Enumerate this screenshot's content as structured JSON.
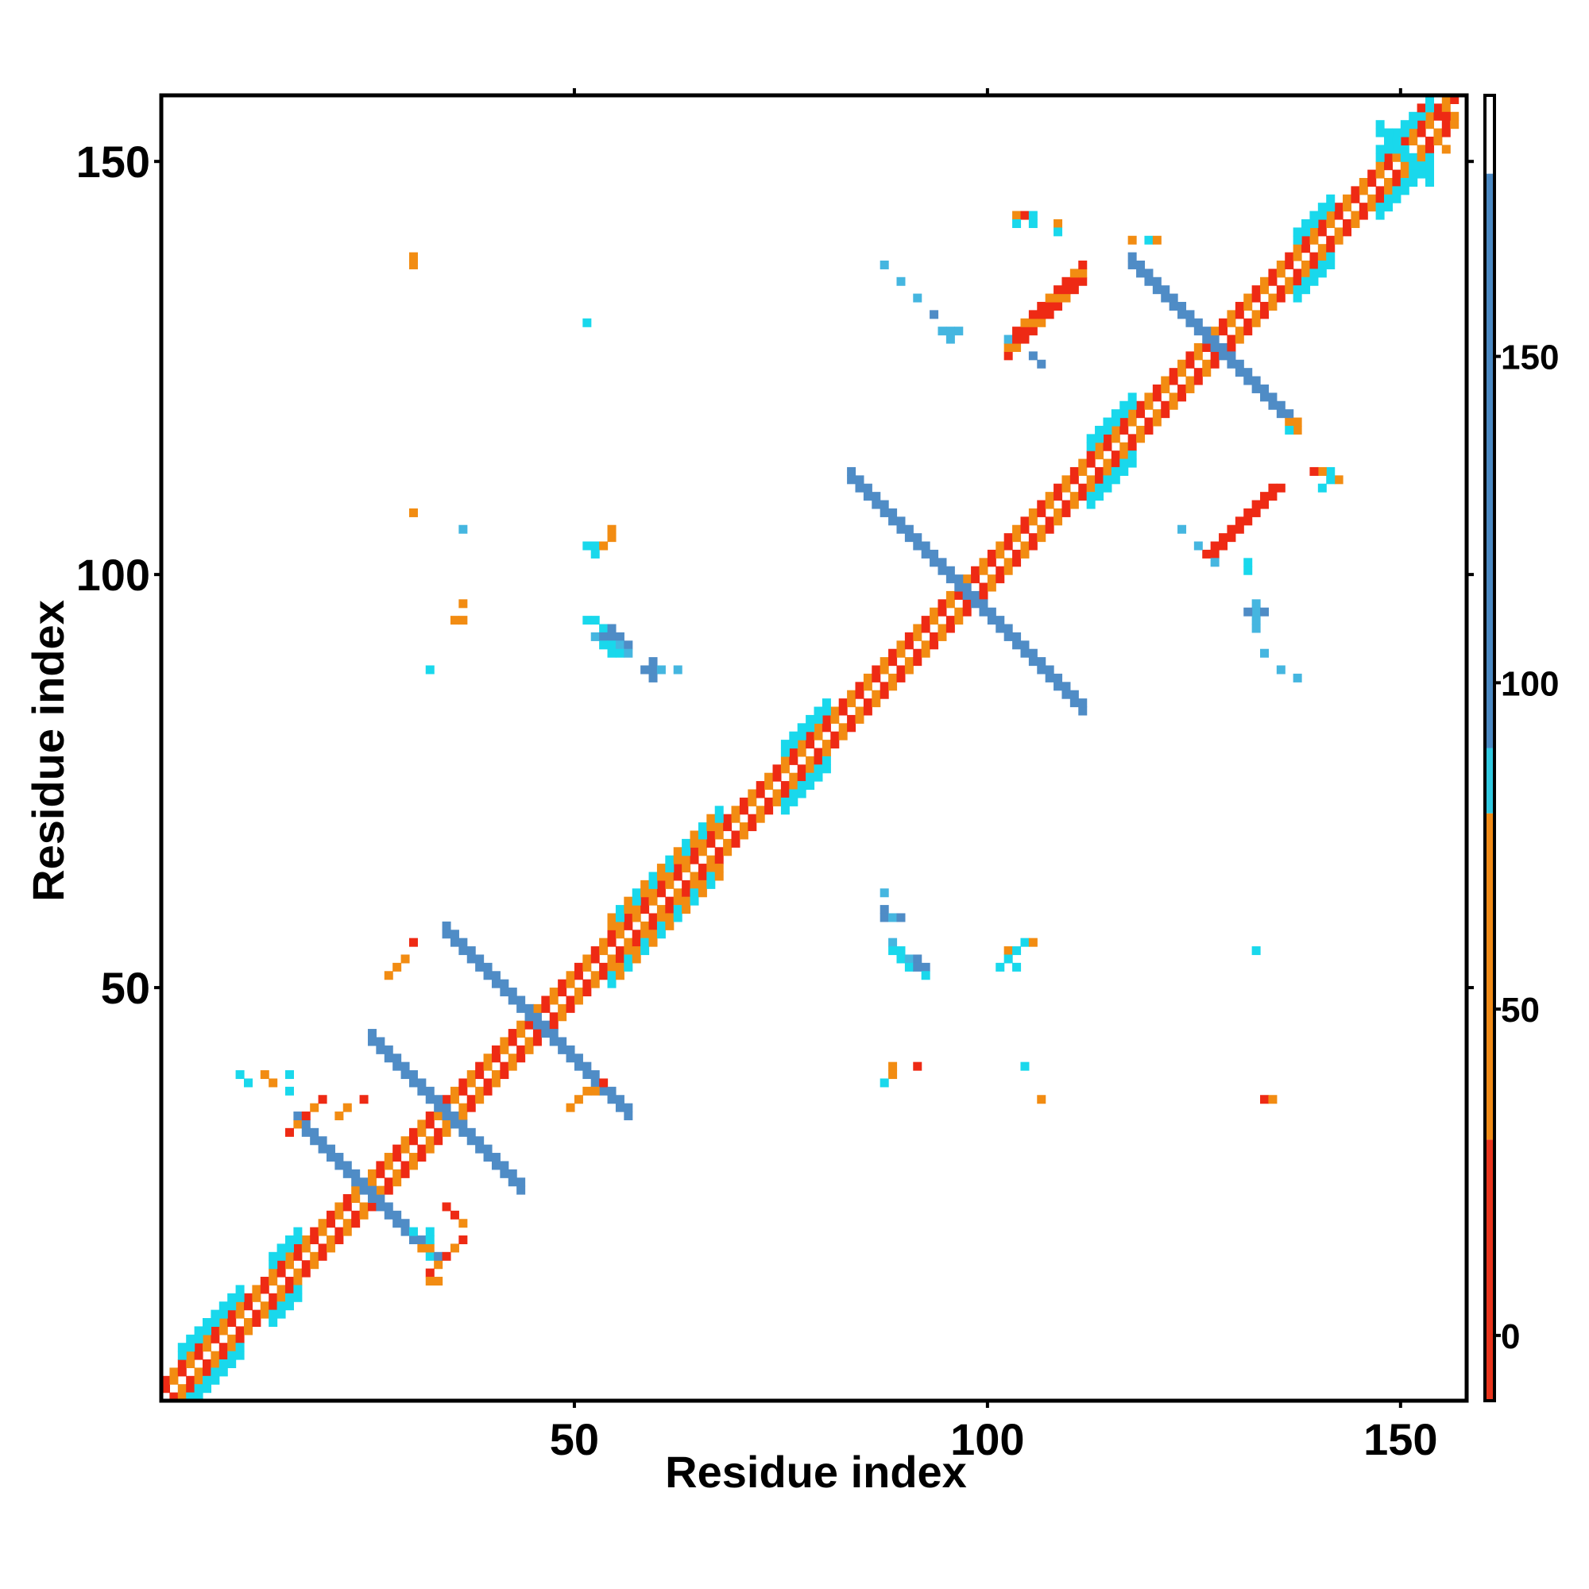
{
  "chart_data": {
    "type": "heatmap",
    "title": "",
    "xlabel": "Residue index",
    "ylabel": "Residue index",
    "xlim": [
      0,
      158
    ],
    "ylim": [
      0,
      158
    ],
    "x_ticks": [
      50,
      100,
      150
    ],
    "y_ticks": [
      50,
      100,
      150
    ],
    "x_tick_labels": [
      "50",
      "100",
      "150"
    ],
    "y_tick_labels": [
      "50",
      "100",
      "150"
    ],
    "grid": false,
    "colorbar": {
      "range": [
        -10,
        190
      ],
      "ticks": [
        0,
        50,
        100,
        150
      ],
      "tick_labels": [
        "0",
        "50",
        "100",
        "150"
      ],
      "segments": [
        {
          "from": -10,
          "to": 30,
          "color": "#e8341c"
        },
        {
          "from": 30,
          "to": 80,
          "color": "#f08a16"
        },
        {
          "from": 80,
          "to": 90,
          "color": "#2fc8e0"
        },
        {
          "from": 90,
          "to": 178,
          "color": "#4a88c2"
        },
        {
          "from": 178,
          "to": 190,
          "color": "#ffffff"
        }
      ]
    },
    "palette": {
      "red": "#ee2a14",
      "orange": "#f28c12",
      "cyan": "#19d8ec",
      "lightblue": "#45b6e0",
      "steelblue": "#4f8cc6"
    },
    "cell_legend": {
      "r": "red",
      "o": "orange",
      "c": "cyan",
      "l": "lightblue",
      "b": "steelblue"
    },
    "segments": [
      {
        "kind": "diagonal",
        "from": 1,
        "to": 157,
        "offsets": [
          -2,
          -1,
          1,
          2
        ],
        "pattern": "ro"
      },
      {
        "kind": "diagonal",
        "from": 3,
        "to": 10,
        "offsets": [
          -4,
          -3,
          3,
          4
        ],
        "pattern": "cc"
      },
      {
        "kind": "diagonal",
        "from": 14,
        "to": 17,
        "offsets": [
          -4,
          -3,
          3,
          4
        ],
        "pattern": "c"
      },
      {
        "kind": "diagonal",
        "from": 55,
        "to": 68,
        "offsets": [
          -4,
          -3,
          3,
          4
        ],
        "pattern": "oc"
      },
      {
        "kind": "diagonal",
        "from": 76,
        "to": 81,
        "offsets": [
          -4,
          -3,
          3,
          4
        ],
        "pattern": "c"
      },
      {
        "kind": "diagonal",
        "from": 113,
        "to": 118,
        "offsets": [
          -4,
          -3,
          3,
          4
        ],
        "pattern": "c"
      },
      {
        "kind": "diagonal",
        "from": 138,
        "to": 142,
        "offsets": [
          -4,
          -3,
          3,
          4
        ],
        "pattern": "c"
      },
      {
        "kind": "diagonal",
        "from": 148,
        "to": 154,
        "offsets": [
          -4,
          -3,
          3,
          4
        ],
        "pattern": "c"
      },
      {
        "kind": "anti",
        "sum": 51,
        "from": 17,
        "to": 34,
        "width": 2,
        "pattern": "b"
      },
      {
        "kind": "anti",
        "sum": 70,
        "from": 26,
        "to": 44,
        "width": 2,
        "pattern": "b"
      },
      {
        "kind": "anti",
        "sum": 92,
        "from": 35,
        "to": 57,
        "width": 2,
        "pattern": "b"
      },
      {
        "kind": "anti",
        "sum": 196,
        "from": 84,
        "to": 112,
        "width": 2,
        "pattern": "b"
      },
      {
        "kind": "anti",
        "sum": 256,
        "from": 118,
        "to": 138,
        "width": 2,
        "pattern": "b"
      },
      {
        "kind": "anti",
        "sum": 302,
        "from": 148,
        "to": 154,
        "width": 2,
        "pattern": "c"
      },
      {
        "kind": "parallel",
        "offset": 24,
        "from": 103,
        "to": 112,
        "width": 3,
        "pattern": "rro"
      },
      {
        "kind": "parallel",
        "offset": 24,
        "from": 103,
        "to": 111,
        "width": 2,
        "pattern": "rr",
        "mirror": true
      },
      {
        "kind": "parallel",
        "offset": 17,
        "from": 16,
        "to": 20,
        "width": 1,
        "pattern": "ro"
      },
      {
        "kind": "parallel",
        "offset": 17,
        "from": 16,
        "to": 20,
        "width": 1,
        "pattern": "ro",
        "mirror": true
      }
    ],
    "points": [
      [
        52,
        95,
        "c"
      ],
      [
        53,
        95,
        "c"
      ],
      [
        54,
        94,
        "c"
      ],
      [
        55,
        94,
        "b"
      ],
      [
        53,
        93,
        "l"
      ],
      [
        54,
        93,
        "b"
      ],
      [
        55,
        93,
        "b"
      ],
      [
        56,
        93,
        "b"
      ],
      [
        54,
        92,
        "c"
      ],
      [
        55,
        92,
        "c"
      ],
      [
        56,
        92,
        "l"
      ],
      [
        57,
        92,
        "b"
      ],
      [
        55,
        91,
        "c"
      ],
      [
        56,
        91,
        "c"
      ],
      [
        57,
        91,
        "l"
      ],
      [
        60,
        90,
        "b"
      ],
      [
        60,
        89,
        "b"
      ],
      [
        59,
        89,
        "b"
      ],
      [
        61,
        89,
        "l"
      ],
      [
        63,
        89,
        "l"
      ],
      [
        60,
        88,
        "b"
      ],
      [
        89,
        56,
        "l"
      ],
      [
        89,
        55,
        "c"
      ],
      [
        90,
        55,
        "c"
      ],
      [
        90,
        54,
        "c"
      ],
      [
        91,
        54,
        "l"
      ],
      [
        92,
        54,
        "b"
      ],
      [
        91,
        53,
        "c"
      ],
      [
        92,
        53,
        "b"
      ],
      [
        93,
        53,
        "b"
      ],
      [
        93,
        52,
        "c"
      ],
      [
        88,
        60,
        "b"
      ],
      [
        88,
        59,
        "b"
      ],
      [
        89,
        59,
        "l"
      ],
      [
        90,
        59,
        "b"
      ],
      [
        88,
        62,
        "l"
      ],
      [
        52,
        104,
        "c"
      ],
      [
        53,
        104,
        "c"
      ],
      [
        54,
        104,
        "o"
      ],
      [
        55,
        105,
        "o"
      ],
      [
        55,
        106,
        "o"
      ],
      [
        53,
        103,
        "c"
      ],
      [
        132,
        102,
        "c"
      ],
      [
        132,
        101,
        "c"
      ],
      [
        133,
        97,
        "l"
      ],
      [
        133,
        96,
        "l"
      ],
      [
        132,
        96,
        "b"
      ],
      [
        134,
        96,
        "b"
      ],
      [
        133,
        95,
        "l"
      ],
      [
        133,
        94,
        "l"
      ],
      [
        103,
        55,
        "o"
      ],
      [
        104,
        55,
        "c"
      ],
      [
        105,
        56,
        "c"
      ],
      [
        106,
        56,
        "o"
      ],
      [
        103,
        54,
        "c"
      ],
      [
        104,
        53,
        "c"
      ],
      [
        102,
        53,
        "c"
      ],
      [
        88,
        138,
        "l"
      ],
      [
        90,
        136,
        "l"
      ],
      [
        92,
        134,
        "l"
      ],
      [
        94,
        132,
        "b"
      ],
      [
        96,
        130,
        "l"
      ],
      [
        95,
        130,
        "l"
      ],
      [
        97,
        130,
        "l"
      ],
      [
        96,
        129,
        "l"
      ],
      [
        103,
        129,
        "l"
      ],
      [
        106,
        127,
        "b"
      ],
      [
        107,
        126,
        "b"
      ],
      [
        124,
        106,
        "l"
      ],
      [
        126,
        104,
        "l"
      ],
      [
        128,
        102,
        "l"
      ],
      [
        134,
        91,
        "l"
      ],
      [
        136,
        89,
        "l"
      ],
      [
        138,
        88,
        "l"
      ],
      [
        31,
        139,
        "o"
      ],
      [
        31,
        138,
        "o"
      ],
      [
        52,
        131,
        "c"
      ],
      [
        31,
        108,
        "o"
      ],
      [
        37,
        106,
        "l"
      ],
      [
        37,
        97,
        "o"
      ],
      [
        36,
        95,
        "o"
      ],
      [
        37,
        95,
        "o"
      ],
      [
        33,
        89,
        "c"
      ],
      [
        31,
        56,
        "r"
      ],
      [
        30,
        54,
        "o"
      ],
      [
        29,
        53,
        "o"
      ],
      [
        28,
        52,
        "o"
      ],
      [
        89,
        41,
        "o"
      ],
      [
        89,
        40,
        "o"
      ],
      [
        92,
        41,
        "r"
      ],
      [
        88,
        39,
        "c"
      ],
      [
        105,
        41,
        "c"
      ],
      [
        107,
        37,
        "o"
      ],
      [
        134,
        37,
        "r"
      ],
      [
        135,
        37,
        "o"
      ],
      [
        133,
        55,
        "c"
      ],
      [
        10,
        40,
        "c"
      ],
      [
        11,
        39,
        "c"
      ],
      [
        13,
        40,
        "o"
      ],
      [
        14,
        39,
        "o"
      ],
      [
        16,
        40,
        "c"
      ],
      [
        16,
        38,
        "c"
      ],
      [
        25,
        37,
        "r"
      ],
      [
        23,
        36,
        "o"
      ],
      [
        22,
        35,
        "o"
      ],
      [
        35,
        24,
        "r"
      ],
      [
        36,
        23,
        "r"
      ],
      [
        37,
        22,
        "o"
      ],
      [
        33,
        19,
        "o"
      ],
      [
        33,
        20,
        "c"
      ],
      [
        32,
        19,
        "o"
      ],
      [
        31,
        21,
        "c"
      ],
      [
        33,
        21,
        "c"
      ],
      [
        33,
        15,
        "o"
      ],
      [
        34,
        15,
        "o"
      ],
      [
        33,
        18,
        "c"
      ],
      [
        143,
        112,
        "o"
      ],
      [
        142,
        113,
        "c"
      ],
      [
        142,
        112,
        "c"
      ],
      [
        141,
        113,
        "o"
      ],
      [
        140,
        113,
        "r"
      ],
      [
        141,
        111,
        "c"
      ],
      [
        104,
        144,
        "o"
      ],
      [
        105,
        144,
        "r"
      ],
      [
        104,
        143,
        "c"
      ],
      [
        106,
        144,
        "c"
      ],
      [
        106,
        143,
        "c"
      ],
      [
        109,
        143,
        "o"
      ],
      [
        109,
        142,
        "c"
      ],
      [
        120,
        141,
        "c"
      ],
      [
        121,
        141,
        "o"
      ],
      [
        118,
        141,
        "o"
      ],
      [
        137,
        118,
        "c"
      ],
      [
        138,
        118,
        "o"
      ],
      [
        138,
        119,
        "o"
      ],
      [
        137,
        119,
        "o"
      ],
      [
        52,
        38,
        "o"
      ],
      [
        53,
        38,
        "o"
      ],
      [
        54,
        39,
        "r"
      ],
      [
        50,
        36,
        "o"
      ],
      [
        51,
        37,
        "o"
      ],
      [
        153,
        157,
        "r"
      ],
      [
        156,
        156,
        "r"
      ],
      [
        157,
        155,
        "o"
      ],
      [
        156,
        152,
        "o"
      ]
    ]
  }
}
